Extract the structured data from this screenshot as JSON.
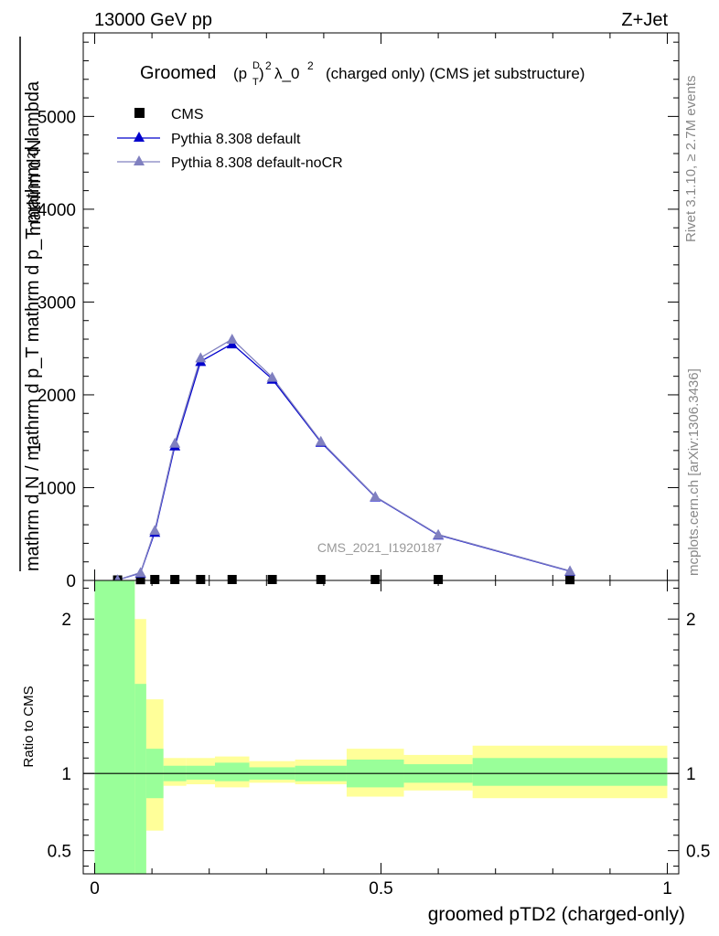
{
  "header": {
    "left": "13000 GeV pp",
    "right": "Z+Jet"
  },
  "side_labels": {
    "rivet": "Rivet 3.1.10, ≥ 2.7M events",
    "mcplots": "mcplots.cern.ch [arXiv:1306.3436]"
  },
  "chart_data": [
    {
      "type": "line",
      "title_main": "Groomed",
      "title_sup1": "D",
      "title_sub1": "T",
      "title_sup2": "2",
      "title_rest": "λ_0",
      "title_sup3": "2",
      "title_tail": "(charged only) (CMS jet substructure)",
      "ylabel_num": "mathrm d²N",
      "ylabel_num_small": "1",
      "ylabel_den": "mathrm d N / mathrm d p_T mathrm d p_T mathrm d lambda",
      "watermark": "CMS_2021_I1920187",
      "xlim": [
        -0.02,
        1.02
      ],
      "ylim": [
        0,
        5900
      ],
      "y_ticks": [
        0,
        1000,
        2000,
        3000,
        4000,
        5000
      ],
      "y_tick_labels": [
        "0",
        "1000",
        "2000",
        "3000",
        "4000",
        "5000"
      ],
      "legend_position": "top-left",
      "series": [
        {
          "name": "CMS",
          "marker": "square",
          "color": "#000000",
          "x": [
            0.04,
            0.08,
            0.105,
            0.14,
            0.185,
            0.24,
            0.31,
            0.395,
            0.49,
            0.6,
            0.83
          ],
          "y": [
            5,
            8,
            10,
            10,
            10,
            10,
            10,
            10,
            10,
            10,
            8
          ]
        },
        {
          "name": "Pythia 8.308 default",
          "marker": "triangle",
          "color": "#0000cc",
          "x": [
            0.04,
            0.08,
            0.105,
            0.14,
            0.185,
            0.24,
            0.31,
            0.395,
            0.49,
            0.6,
            0.83
          ],
          "y": [
            5,
            80,
            520,
            1450,
            2360,
            2550,
            2170,
            1490,
            900,
            490,
            100
          ]
        },
        {
          "name": "Pythia 8.308 default-noCR",
          "marker": "triangle",
          "color": "#8080c0",
          "x": [
            0.04,
            0.08,
            0.105,
            0.14,
            0.185,
            0.24,
            0.31,
            0.395,
            0.49,
            0.6,
            0.83
          ],
          "y": [
            5,
            85,
            540,
            1480,
            2400,
            2600,
            2190,
            1500,
            905,
            495,
            103
          ]
        }
      ]
    },
    {
      "type": "area",
      "ylabel": "Ratio to CMS",
      "xlabel": "groomed pTD2 (charged-only)",
      "xlim": [
        -0.02,
        1.02
      ],
      "ylim": [
        0.35,
        2.25
      ],
      "y_ticks": [
        0.5,
        1,
        2
      ],
      "y_tick_labels": [
        "0.5",
        "1",
        "2"
      ],
      "x_ticks": [
        0,
        0.5,
        1
      ],
      "x_tick_labels": [
        "0",
        "0.5",
        "1"
      ],
      "bins": [
        {
          "x0": 0.0,
          "x1": 0.07,
          "y_lo": 0.35,
          "y_hi": 2.25,
          "g_lo": 0.35,
          "g_hi": 2.25
        },
        {
          "x0": 0.07,
          "x1": 0.09,
          "y_lo": 0.35,
          "y_hi": 2.0,
          "g_lo": 0.35,
          "g_hi": 1.58
        },
        {
          "x0": 0.09,
          "x1": 0.12,
          "y_lo": 0.63,
          "y_hi": 1.48,
          "g_lo": 0.84,
          "g_hi": 1.16
        },
        {
          "x0": 0.12,
          "x1": 0.16,
          "y_lo": 0.92,
          "y_hi": 1.1,
          "g_lo": 0.95,
          "g_hi": 1.05
        },
        {
          "x0": 0.16,
          "x1": 0.21,
          "y_lo": 0.93,
          "y_hi": 1.1,
          "g_lo": 0.96,
          "g_hi": 1.05
        },
        {
          "x0": 0.21,
          "x1": 0.27,
          "y_lo": 0.91,
          "y_hi": 1.11,
          "g_lo": 0.95,
          "g_hi": 1.07
        },
        {
          "x0": 0.27,
          "x1": 0.35,
          "y_lo": 0.94,
          "y_hi": 1.08,
          "g_lo": 0.96,
          "g_hi": 1.04
        },
        {
          "x0": 0.35,
          "x1": 0.44,
          "y_lo": 0.93,
          "y_hi": 1.09,
          "g_lo": 0.95,
          "g_hi": 1.05
        },
        {
          "x0": 0.44,
          "x1": 0.54,
          "y_lo": 0.85,
          "y_hi": 1.16,
          "g_lo": 0.91,
          "g_hi": 1.09
        },
        {
          "x0": 0.54,
          "x1": 0.66,
          "y_lo": 0.89,
          "y_hi": 1.12,
          "g_lo": 0.94,
          "g_hi": 1.06
        },
        {
          "x0": 0.66,
          "x1": 1.0,
          "y_lo": 0.84,
          "y_hi": 1.18,
          "g_lo": 0.92,
          "g_hi": 1.1
        }
      ],
      "band_colors": {
        "outer": "#ffff99",
        "inner": "#99ff99"
      }
    }
  ]
}
